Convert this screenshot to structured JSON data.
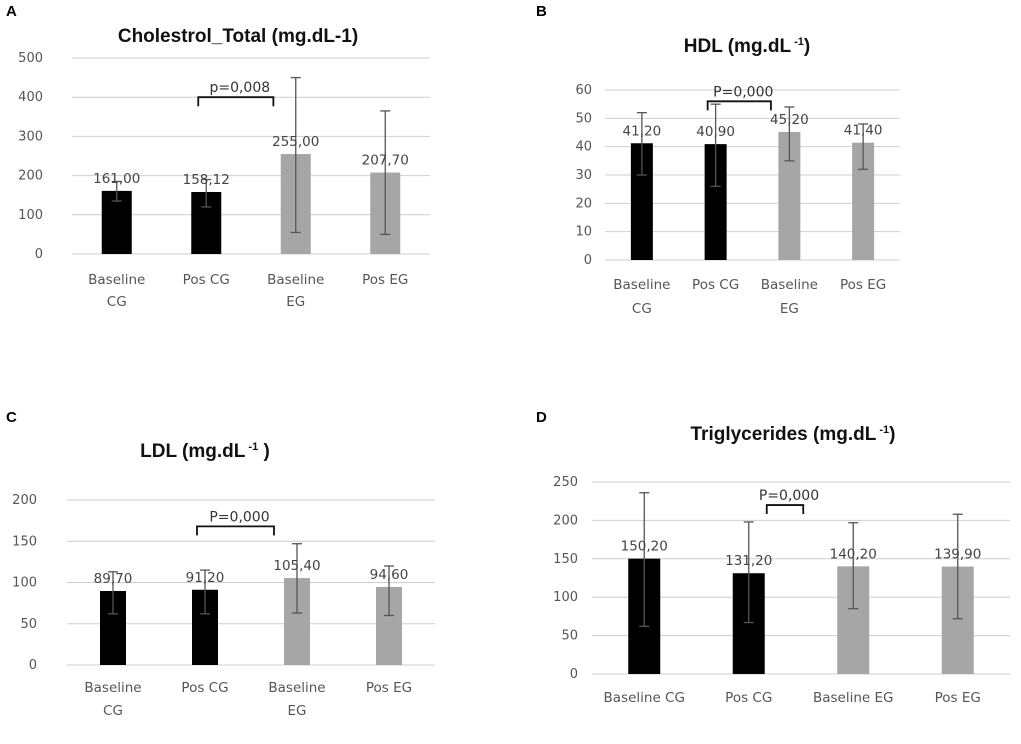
{
  "chart_data": [
    {
      "panel": "A",
      "type": "bar",
      "title": "Cholestrol_Total (mg.dL-1)",
      "categories": [
        [
          "Baseline",
          "CG"
        ],
        [
          "Pos CG"
        ],
        [
          "Baseline",
          "EG"
        ],
        [
          "Pos EG"
        ]
      ],
      "values": [
        161.0,
        158.12,
        255.0,
        207.7
      ],
      "value_labels": [
        "161,00",
        "158,12",
        "255,00",
        "207,70"
      ],
      "error_low": [
        135,
        120,
        55,
        50
      ],
      "error_high": [
        185,
        190,
        450,
        365
      ],
      "bar_colors": [
        "#000000",
        "#000000",
        "#a6a6a6",
        "#a6a6a6"
      ],
      "ylim": [
        0,
        500
      ],
      "yticks": [
        0,
        100,
        200,
        300,
        400,
        500
      ],
      "ytick_labels": [
        "0",
        "100",
        "200",
        "300",
        "400",
        "500"
      ],
      "annotation": {
        "text": "p=0,008",
        "between": [
          1,
          2
        ]
      },
      "grid": true
    },
    {
      "panel": "B",
      "type": "bar",
      "title": "HDL (mg.dL",
      "title_sup": "-1",
      "title_end": ")",
      "categories": [
        [
          "Baseline",
          "CG"
        ],
        [
          "Pos CG"
        ],
        [
          "Baseline",
          "EG"
        ],
        [
          "Pos EG"
        ]
      ],
      "values": [
        41.2,
        40.9,
        45.2,
        41.4
      ],
      "value_labels": [
        "41,20",
        "40,90",
        "45,20",
        "41,40"
      ],
      "error_low": [
        30,
        26,
        35,
        32
      ],
      "error_high": [
        52,
        55,
        54,
        48
      ],
      "bar_colors": [
        "#000000",
        "#000000",
        "#a6a6a6",
        "#a6a6a6"
      ],
      "ylim": [
        0,
        60
      ],
      "yticks": [
        0,
        10,
        20,
        30,
        40,
        50,
        60
      ],
      "ytick_labels": [
        "0",
        "10",
        "20",
        "30",
        "40",
        "50",
        "60"
      ],
      "annotation": {
        "text": "P=0,000",
        "between": [
          1,
          2
        ]
      },
      "grid": true
    },
    {
      "panel": "C",
      "type": "bar",
      "title": "LDL (mg.dL",
      "title_sup": "-1",
      "title_end": " )",
      "categories": [
        [
          "Baseline",
          "CG"
        ],
        [
          "Pos CG"
        ],
        [
          "Baseline",
          "EG"
        ],
        [
          "Pos EG"
        ]
      ],
      "values": [
        89.7,
        91.2,
        105.4,
        94.6
      ],
      "value_labels": [
        "89,70",
        "91,20",
        "105,40",
        "94,60"
      ],
      "error_low": [
        62,
        62,
        63,
        60
      ],
      "error_high": [
        113,
        115,
        147,
        120
      ],
      "bar_colors": [
        "#000000",
        "#000000",
        "#a6a6a6",
        "#a6a6a6"
      ],
      "ylim": [
        0,
        200
      ],
      "yticks": [
        0,
        50,
        100,
        150,
        200
      ],
      "ytick_labels": [
        "0",
        "50",
        "100",
        "150",
        "200"
      ],
      "annotation": {
        "text": "P=0,000",
        "between": [
          1,
          2
        ]
      },
      "grid": true
    },
    {
      "panel": "D",
      "type": "bar",
      "title": "Triglycerides (mg.dL",
      "title_sup": "-1",
      "title_end": ")",
      "categories": [
        [
          "Baseline CG"
        ],
        [
          "Pos CG"
        ],
        [
          "Baseline EG"
        ],
        [
          "Pos EG"
        ]
      ],
      "values": [
        150.2,
        131.2,
        140.2,
        139.9
      ],
      "value_labels": [
        "150,20",
        "131,20",
        "140,20",
        "139,90"
      ],
      "error_low": [
        62,
        67,
        85,
        72
      ],
      "error_high": [
        236,
        198,
        197,
        208
      ],
      "bar_colors": [
        "#000000",
        "#000000",
        "#a6a6a6",
        "#a6a6a6"
      ],
      "ylim": [
        0,
        250
      ],
      "yticks": [
        0,
        50,
        100,
        150,
        200,
        250
      ],
      "ytick_labels": [
        "0",
        "50",
        "100",
        "150",
        "200",
        "250"
      ],
      "annotation": {
        "text": "P=0,000",
        "between": [
          1,
          2
        ]
      },
      "grid": true
    }
  ]
}
